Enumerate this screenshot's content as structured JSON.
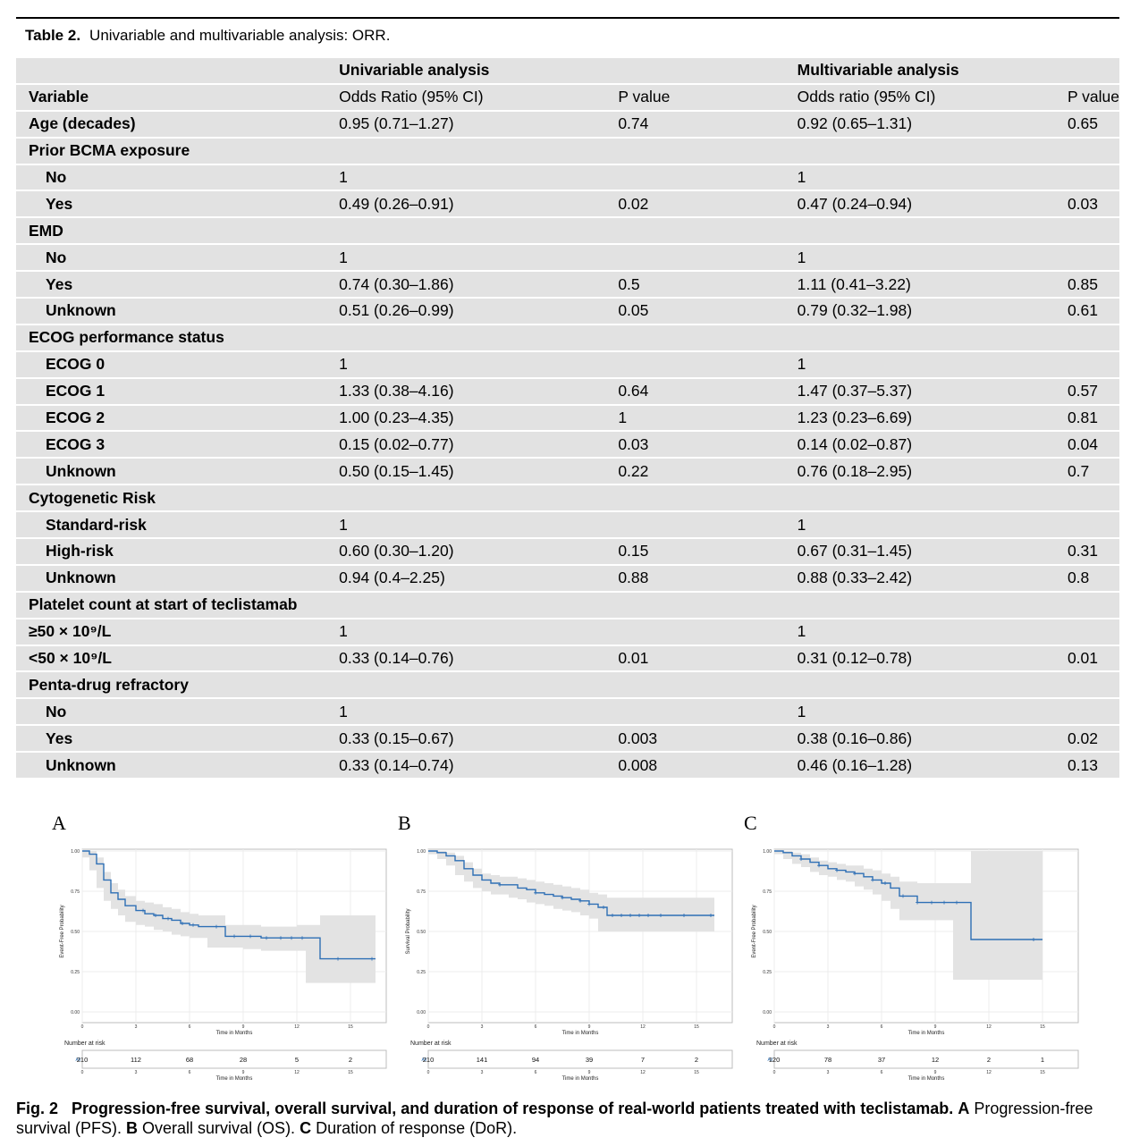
{
  "table": {
    "label": "Table 2.",
    "title": "Univariable and multivariable analysis: ORR.",
    "header_groups": [
      "Univariable analysis",
      "Multivariable analysis"
    ],
    "columns": [
      "Variable",
      "Odds Ratio (95% CI)",
      "P value",
      "Odds ratio (95% CI)",
      "P value"
    ],
    "rows": [
      {
        "variable": "Age (decades)",
        "uni_or": "0.95 (0.71–1.27)",
        "uni_p": "0.74",
        "multi_or": "0.92 (0.65–1.31)",
        "multi_p": "0.65"
      },
      {
        "variable": "Prior BCMA exposure",
        "group": true
      },
      {
        "variable": "No",
        "uni_or": "1",
        "uni_p": "",
        "multi_or": "1",
        "multi_p": ""
      },
      {
        "variable": "Yes",
        "uni_or": "0.49 (0.26–0.91)",
        "uni_p": "0.02",
        "multi_or": "0.47 (0.24–0.94)",
        "multi_p": "0.03"
      },
      {
        "variable": "EMD",
        "group": true
      },
      {
        "variable": "No",
        "uni_or": "1",
        "uni_p": "",
        "multi_or": "1",
        "multi_p": ""
      },
      {
        "variable": "Yes",
        "uni_or": "0.74 (0.30–1.86)",
        "uni_p": "0.5",
        "multi_or": "1.11 (0.41–3.22)",
        "multi_p": "0.85"
      },
      {
        "variable": "Unknown",
        "uni_or": "0.51 (0.26–0.99)",
        "uni_p": "0.05",
        "multi_or": "0.79 (0.32–1.98)",
        "multi_p": "0.61"
      },
      {
        "variable": "ECOG performance status",
        "group": true
      },
      {
        "variable": "ECOG 0",
        "uni_or": "1",
        "uni_p": "",
        "multi_or": "1",
        "multi_p": ""
      },
      {
        "variable": "ECOG 1",
        "uni_or": "1.33 (0.38–4.16)",
        "uni_p": "0.64",
        "multi_or": "1.47 (0.37–5.37)",
        "multi_p": "0.57"
      },
      {
        "variable": "ECOG 2",
        "uni_or": "1.00 (0.23–4.35)",
        "uni_p": "1",
        "multi_or": "1.23 (0.23–6.69)",
        "multi_p": "0.81"
      },
      {
        "variable": "ECOG 3",
        "uni_or": "0.15 (0.02–0.77)",
        "uni_p": "0.03",
        "multi_or": "0.14 (0.02–0.87)",
        "multi_p": "0.04"
      },
      {
        "variable": "Unknown",
        "uni_or": "0.50 (0.15–1.45)",
        "uni_p": "0.22",
        "multi_or": "0.76 (0.18–2.95)",
        "multi_p": "0.7"
      },
      {
        "variable": "Cytogenetic Risk",
        "group": true
      },
      {
        "variable": "Standard-risk",
        "uni_or": "1",
        "uni_p": "",
        "multi_or": "1",
        "multi_p": ""
      },
      {
        "variable": "High-risk",
        "uni_or": "0.60 (0.30–1.20)",
        "uni_p": "0.15",
        "multi_or": "0.67 (0.31–1.45)",
        "multi_p": "0.31"
      },
      {
        "variable": "Unknown",
        "uni_or": "0.94 (0.4–2.25)",
        "uni_p": "0.88",
        "multi_or": "0.88 (0.33–2.42)",
        "multi_p": "0.8"
      },
      {
        "variable": "Platelet count at start of teclistamab",
        "group": true
      },
      {
        "variable": "≥50 × 10⁹/L",
        "uni_or": "1",
        "uni_p": "",
        "multi_or": "1",
        "multi_p": "",
        "narrow": true
      },
      {
        "variable": "<50 × 10⁹/L",
        "uni_or": "0.33 (0.14–0.76)",
        "uni_p": "0.01",
        "multi_or": "0.31 (0.12–0.78)",
        "multi_p": "0.01",
        "narrow": true
      },
      {
        "variable": "Penta-drug refractory",
        "group": true
      },
      {
        "variable": "No",
        "uni_or": "1",
        "uni_p": "",
        "multi_or": "1",
        "multi_p": ""
      },
      {
        "variable": "Yes",
        "uni_or": "0.33 (0.15–0.67)",
        "uni_p": "0.003",
        "multi_or": "0.38 (0.16–0.86)",
        "multi_p": "0.02"
      },
      {
        "variable": "Unknown",
        "uni_or": "0.33 (0.14–0.74)",
        "uni_p": "0.008",
        "multi_or": "0.46 (0.16–1.28)",
        "multi_p": "0.13"
      }
    ]
  },
  "figure": {
    "line_color": "#2e6fb5",
    "band_color": "#e3e3e3",
    "y_ticks": [
      "0.00",
      "0.25",
      "0.50",
      "0.75",
      "1.00"
    ],
    "x_ticks": [
      "0",
      "3",
      "6",
      "9",
      "12",
      "15"
    ],
    "x_label": "Time in Months",
    "risk_title": "Number at risk",
    "risk_strata": "All",
    "panels": [
      {
        "label": "A",
        "ylabel": "Event-Free Probability",
        "x": [
          0,
          0.4,
          0.8,
          1.2,
          1.6,
          2.0,
          2.4,
          3.0,
          3.5,
          4.0,
          4.5,
          5.0,
          5.5,
          6.0,
          6.5,
          7.0,
          8.0,
          9.0,
          10.0,
          11.0,
          12.0,
          12.5,
          13.3,
          16.4
        ],
        "y": [
          1.0,
          0.98,
          0.92,
          0.82,
          0.74,
          0.7,
          0.66,
          0.63,
          0.61,
          0.6,
          0.58,
          0.57,
          0.55,
          0.54,
          0.53,
          0.53,
          0.47,
          0.47,
          0.46,
          0.46,
          0.46,
          0.46,
          0.33,
          0.33
        ],
        "lower": [
          1.0,
          0.96,
          0.88,
          0.77,
          0.69,
          0.64,
          0.6,
          0.56,
          0.54,
          0.53,
          0.51,
          0.5,
          0.48,
          0.47,
          0.46,
          0.46,
          0.4,
          0.4,
          0.39,
          0.38,
          0.38,
          0.38,
          0.18,
          0.18
        ],
        "upper": [
          1.0,
          1.0,
          0.96,
          0.87,
          0.8,
          0.76,
          0.72,
          0.69,
          0.68,
          0.67,
          0.65,
          0.64,
          0.62,
          0.61,
          0.6,
          0.6,
          0.54,
          0.54,
          0.53,
          0.53,
          0.54,
          0.54,
          0.6,
          0.6
        ],
        "censor_x": [
          3.4,
          4.1,
          4.8,
          5.6,
          6.2,
          7.5,
          8.5,
          9.4,
          10.3,
          11.1,
          11.7,
          12.3,
          14.3,
          16.2
        ],
        "at_risk": [
          "210",
          "112",
          "68",
          "28",
          "5",
          "2"
        ]
      },
      {
        "label": "B",
        "ylabel": "Survival Probability",
        "x": [
          0,
          0.5,
          1.0,
          1.5,
          2.0,
          2.5,
          3.0,
          3.5,
          4.0,
          4.5,
          5.0,
          5.5,
          6.0,
          6.5,
          7.0,
          7.5,
          8.0,
          8.5,
          9.0,
          9.5,
          10.0,
          16.0
        ],
        "y": [
          1.0,
          0.99,
          0.97,
          0.94,
          0.89,
          0.85,
          0.82,
          0.8,
          0.79,
          0.79,
          0.77,
          0.76,
          0.74,
          0.73,
          0.72,
          0.71,
          0.7,
          0.69,
          0.67,
          0.65,
          0.6,
          0.6
        ],
        "lower": [
          1.0,
          0.98,
          0.95,
          0.91,
          0.85,
          0.81,
          0.77,
          0.75,
          0.73,
          0.73,
          0.71,
          0.7,
          0.68,
          0.67,
          0.66,
          0.64,
          0.63,
          0.62,
          0.6,
          0.58,
          0.5,
          0.5
        ],
        "upper": [
          1.0,
          1.0,
          0.99,
          0.97,
          0.93,
          0.89,
          0.86,
          0.85,
          0.84,
          0.84,
          0.83,
          0.82,
          0.81,
          0.8,
          0.79,
          0.78,
          0.77,
          0.76,
          0.74,
          0.73,
          0.71,
          0.71
        ],
        "censor_x": [
          4.0,
          6.0,
          7.5,
          8.5,
          9.0,
          9.8,
          10.3,
          10.8,
          11.3,
          11.8,
          12.3,
          13.0,
          14.3,
          15.8
        ],
        "at_risk": [
          "210",
          "141",
          "94",
          "39",
          "7",
          "2"
        ]
      },
      {
        "label": "C",
        "ylabel": "Event-Free Probability",
        "x": [
          0,
          0.5,
          1.0,
          1.5,
          2.0,
          2.5,
          3.0,
          3.5,
          4.0,
          4.5,
          5.0,
          5.5,
          6.0,
          6.5,
          7.0,
          8.0,
          9.0,
          10.0,
          11.0,
          15.0
        ],
        "y": [
          1.0,
          0.99,
          0.97,
          0.95,
          0.93,
          0.91,
          0.89,
          0.88,
          0.87,
          0.86,
          0.84,
          0.82,
          0.8,
          0.77,
          0.72,
          0.68,
          0.68,
          0.68,
          0.45,
          0.45
        ],
        "lower": [
          1.0,
          0.98,
          0.95,
          0.92,
          0.9,
          0.87,
          0.85,
          0.84,
          0.82,
          0.81,
          0.78,
          0.76,
          0.73,
          0.69,
          0.64,
          0.57,
          0.57,
          0.57,
          0.2,
          0.2
        ],
        "upper": [
          1.0,
          1.0,
          0.99,
          0.98,
          0.96,
          0.94,
          0.93,
          0.92,
          0.91,
          0.91,
          0.89,
          0.88,
          0.86,
          0.84,
          0.81,
          0.8,
          0.8,
          0.8,
          1.0,
          1.0
        ],
        "censor_x": [
          1.5,
          2.5,
          3.5,
          4.5,
          5.5,
          6.2,
          7.2,
          8.0,
          8.8,
          9.5,
          10.2,
          14.5
        ],
        "at_risk": [
          "120",
          "78",
          "37",
          "12",
          "2",
          "1"
        ]
      }
    ],
    "caption_label": "Fig. 2",
    "caption_title": "Progression-free survival, overall survival, and duration of response of real-world patients treated with teclistamab.",
    "caption_parts": [
      {
        "key": "A",
        "text": " Progression-free survival (PFS)."
      },
      {
        "key": "B",
        "text": " Overall survival (OS)."
      },
      {
        "key": "C",
        "text": " Duration of response (DoR)."
      }
    ]
  }
}
